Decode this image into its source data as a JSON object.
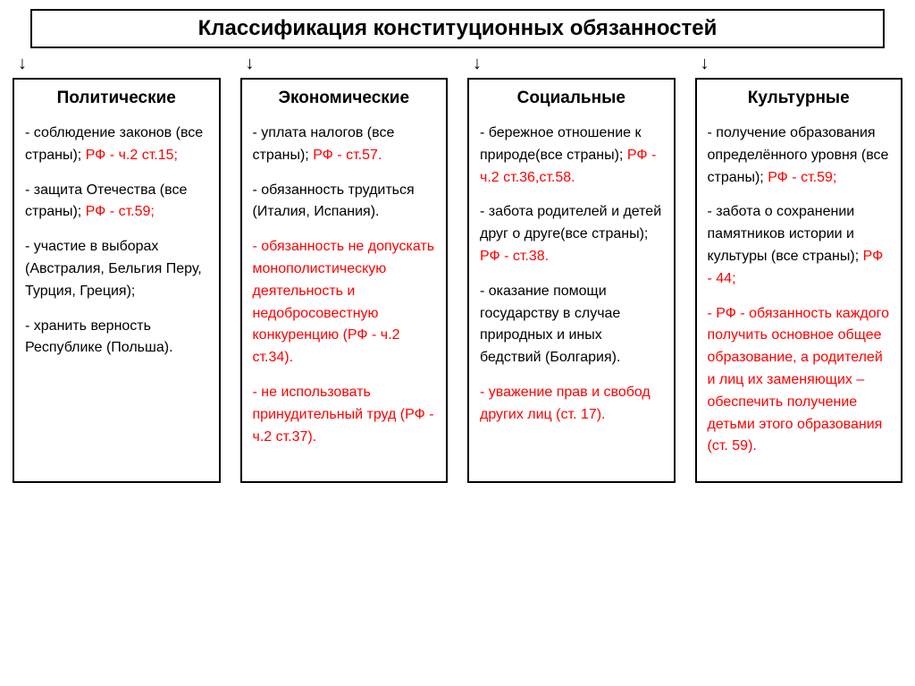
{
  "header": {
    "title": "Классификация конституционных обязанностей"
  },
  "arrow_glyph": "↓",
  "columns": [
    {
      "title": "Политические",
      "items": [
        {
          "segments": [
            {
              "t": "- соблюдение законов (все страны); ",
              "c": "black"
            },
            {
              "t": "РФ - ч.2 ст.15;",
              "c": "red"
            }
          ]
        },
        {
          "segments": [
            {
              "t": "- защита Отечества (все страны); ",
              "c": "black"
            },
            {
              "t": "РФ - ст.59;",
              "c": "red"
            }
          ]
        },
        {
          "segments": [
            {
              "t": "- участие в выборах (Австралия, Бельгия Перу, Турция, Греция);",
              "c": "black"
            }
          ]
        },
        {
          "segments": [
            {
              "t": "- хранить верность Республике (Польша).",
              "c": "black"
            }
          ]
        }
      ]
    },
    {
      "title": "Экономические",
      "items": [
        {
          "segments": [
            {
              "t": "- уплата налогов (все страны); ",
              "c": "black"
            },
            {
              "t": "РФ -  ст.57.",
              "c": "red"
            }
          ]
        },
        {
          "segments": [
            {
              "t": "- обязанность трудиться (Италия, Испания).",
              "c": "black"
            }
          ]
        },
        {
          "segments": [
            {
              "t": " - обязанность не допускать монополистическую деятельность и недобросовестную конкуренцию (РФ - ч.2 ст.34).",
              "c": "red"
            }
          ]
        },
        {
          "segments": [
            {
              "t": " - не использовать принудительный труд (РФ - ч.2 ст.37).",
              "c": "red"
            }
          ]
        }
      ]
    },
    {
      "title": "Социальные",
      "items": [
        {
          "segments": [
            {
              "t": "- бережное отношение к природе(все страны); ",
              "c": "black"
            },
            {
              "t": "РФ -  ч.2 ст.36,ст.58.",
              "c": "red"
            }
          ]
        },
        {
          "segments": [
            {
              "t": "- забота родителей и детей друг о друге(все страны); ",
              "c": "black"
            },
            {
              "t": "РФ -  ст.38.",
              "c": "red"
            }
          ]
        },
        {
          "segments": [
            {
              "t": "- оказание помощи государству в случае природных и иных бедствий (Болгария).",
              "c": "black"
            }
          ]
        },
        {
          "segments": [
            {
              "t": " - уважение прав и свобод других лиц (ст. 17).",
              "c": "red"
            }
          ]
        }
      ]
    },
    {
      "title": "Культурные",
      "items": [
        {
          "segments": [
            {
              "t": "- получение образования определённого уровня (все страны); ",
              "c": "black"
            },
            {
              "t": "РФ -  ст.59;",
              "c": "red"
            }
          ]
        },
        {
          "segments": [
            {
              "t": "- забота о сохранении памятников истории и культуры (все страны); ",
              "c": "black"
            },
            {
              "t": "РФ - 44;",
              "c": "red"
            }
          ]
        },
        {
          "segments": [
            {
              "t": "- РФ -  обязанность каждого получить основное общее образование, а родителей и лиц их заменяющих – обеспечить получение детьми этого образования (ст. 59).",
              "c": "red"
            }
          ]
        }
      ]
    }
  ],
  "colors": {
    "red": "#ff0000",
    "black": "#000000",
    "bg": "#ffffff"
  },
  "font": {
    "title_size": 24,
    "col_title_size": 19,
    "body_size": 16
  }
}
